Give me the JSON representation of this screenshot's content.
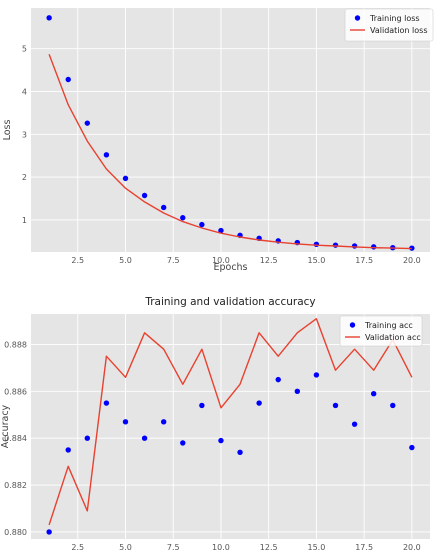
{
  "colors": {
    "plot_bg": "#e5e5e5",
    "grid": "#ffffff",
    "train": "#0000ff",
    "val": "#e8412f",
    "legend_bg": "#ffffff"
  },
  "chart_data": [
    {
      "type": "line",
      "title": "",
      "xlabel": "Epochs",
      "ylabel": "Loss",
      "xlim": [
        0.05,
        20.95
      ],
      "ylim": [
        0.25,
        5.95
      ],
      "xticks": [
        "2.5",
        "5.0",
        "7.5",
        "10.0",
        "12.5",
        "15.0",
        "17.5",
        "20.0"
      ],
      "yticks": [
        "1",
        "2",
        "3",
        "4",
        "5"
      ],
      "grid": true,
      "legend_position": "top-right",
      "x": [
        1,
        2,
        3,
        4,
        5,
        6,
        7,
        8,
        9,
        10,
        11,
        12,
        13,
        14,
        15,
        16,
        17,
        18,
        19,
        20
      ],
      "series": [
        {
          "name": "Training loss",
          "style": "dots",
          "values": [
            5.72,
            4.28,
            3.26,
            2.52,
            1.97,
            1.57,
            1.29,
            1.05,
            0.89,
            0.75,
            0.64,
            0.57,
            0.51,
            0.47,
            0.43,
            0.41,
            0.39,
            0.37,
            0.35,
            0.34
          ]
        },
        {
          "name": "Validation loss",
          "style": "line",
          "values": [
            4.87,
            3.69,
            2.84,
            2.19,
            1.74,
            1.42,
            1.16,
            0.96,
            0.81,
            0.69,
            0.6,
            0.53,
            0.48,
            0.44,
            0.41,
            0.39,
            0.37,
            0.35,
            0.34,
            0.33
          ]
        }
      ]
    },
    {
      "type": "line",
      "title": "Training and validation accuracy",
      "xlabel": "",
      "ylabel": "Accuracy",
      "xlim": [
        0.05,
        20.95
      ],
      "ylim": [
        0.8797,
        0.8893
      ],
      "xticks": [
        "2.5",
        "5.0",
        "7.5",
        "10.0",
        "12.5",
        "15.0",
        "17.5",
        "20.0"
      ],
      "yticks": [
        "0.880",
        "0.882",
        "0.884",
        "0.886",
        "0.888"
      ],
      "grid": true,
      "legend_position": "top-right",
      "x": [
        1,
        2,
        3,
        4,
        5,
        6,
        7,
        8,
        9,
        10,
        11,
        12,
        13,
        14,
        15,
        16,
        17,
        18,
        19,
        20
      ],
      "series": [
        {
          "name": "Training acc",
          "style": "dots",
          "values": [
            0.88,
            0.8835,
            0.884,
            0.8855,
            0.8847,
            0.884,
            0.8847,
            0.8838,
            0.8854,
            0.8839,
            0.8834,
            0.8855,
            0.8865,
            0.886,
            0.8867,
            0.8854,
            0.8846,
            0.8859,
            0.8854,
            0.8836
          ]
        },
        {
          "name": "Validation acc",
          "style": "line",
          "values": [
            0.8803,
            0.8828,
            0.8809,
            0.8875,
            0.8866,
            0.8885,
            0.8878,
            0.8863,
            0.8878,
            0.8853,
            0.8863,
            0.8885,
            0.8875,
            0.8885,
            0.8891,
            0.8869,
            0.8878,
            0.8869,
            0.8882,
            0.8866
          ]
        }
      ]
    }
  ]
}
